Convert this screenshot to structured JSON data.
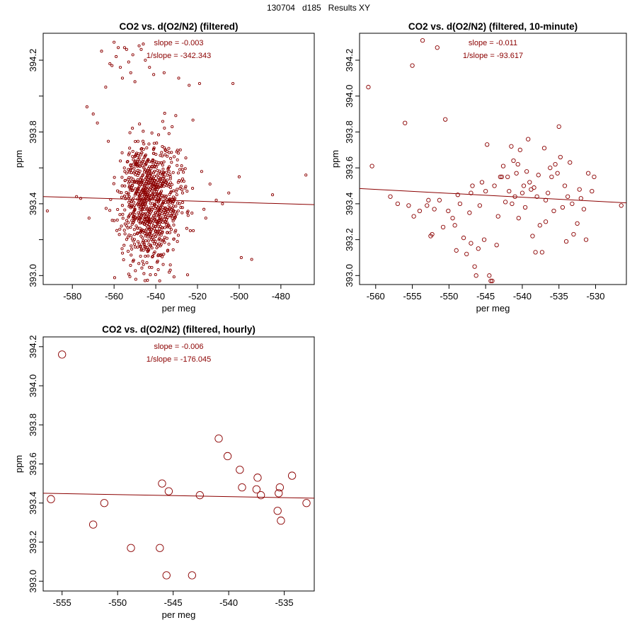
{
  "page": {
    "title": "130704   d185   Results XY"
  },
  "colors": {
    "points": "#8b0000",
    "line": "#8b0000",
    "axes": "#000000"
  },
  "chart_data": [
    {
      "type": "scatter",
      "title": "CO2 vs. d(O2/N2) (filtered)",
      "xlabel": "per meg",
      "ylabel": "ppm",
      "xlim": [
        -594,
        -464
      ],
      "ylim": [
        392.95,
        394.35
      ],
      "xticks": [
        -580,
        -560,
        -540,
        -520,
        -500,
        -480
      ],
      "yticks": [
        393.0,
        393.2,
        393.4,
        393.6,
        393.8,
        394.0,
        394.2
      ],
      "ytick_labels": [
        "393.0",
        "",
        "393.4",
        "",
        "393.8",
        "",
        "394.2"
      ],
      "annotations": [
        "slope = -0.003",
        "1/slope = -342.343"
      ],
      "marker": "small",
      "regression": {
        "x": [
          -594,
          -464
        ],
        "y": [
          393.44,
          393.395
        ]
      },
      "synthetic_cloud": {
        "n": 950,
        "cx": -542,
        "cy": 393.42,
        "sx": 7.5,
        "sy": 0.17,
        "seed": 7
      },
      "points": [
        [
          -592,
          393.36
        ],
        [
          -578,
          393.44
        ],
        [
          -576,
          393.43
        ],
        [
          -573,
          393.94
        ],
        [
          -572,
          393.32
        ],
        [
          -570,
          393.9
        ],
        [
          -568,
          393.85
        ],
        [
          -566,
          394.25
        ],
        [
          -564,
          394.05
        ],
        [
          -562,
          394.18
        ],
        [
          -561,
          394.17
        ],
        [
          -560,
          394.3
        ],
        [
          -559,
          394.22
        ],
        [
          -558,
          394.27
        ],
        [
          -557,
          394.16
        ],
        [
          -556,
          394.1
        ],
        [
          -555,
          394.27
        ],
        [
          -554,
          394.26
        ],
        [
          -553,
          394.19
        ],
        [
          -552,
          394.13
        ],
        [
          -551,
          394.23
        ],
        [
          -550,
          394.08
        ],
        [
          -548,
          394.28
        ],
        [
          -547,
          394.26
        ],
        [
          -546,
          394.29
        ],
        [
          -545,
          394.2
        ],
        [
          -543,
          394.16
        ],
        [
          -541,
          394.12
        ],
        [
          -536,
          394.13
        ],
        [
          -529,
          394.1
        ],
        [
          -524,
          394.06
        ],
        [
          -519,
          394.07
        ],
        [
          -514,
          393.51
        ],
        [
          -511,
          393.42
        ],
        [
          -508,
          393.4
        ],
        [
          -505,
          393.46
        ],
        [
          -503,
          394.07
        ],
        [
          -500,
          393.55
        ],
        [
          -499,
          393.1
        ],
        [
          -494,
          393.09
        ],
        [
          -484,
          393.45
        ],
        [
          -468,
          393.56
        ],
        [
          -533,
          393.55
        ],
        [
          -528,
          393.38
        ],
        [
          -525,
          393.47
        ],
        [
          -522,
          393.25
        ],
        [
          -518,
          393.58
        ],
        [
          -516,
          393.32
        ]
      ]
    },
    {
      "type": "scatter",
      "title": "CO2 vs. d(O2/N2) (filtered, 10-minute)",
      "xlabel": "per meg",
      "ylabel": "ppm",
      "xlim": [
        -562.2,
        -525.8
      ],
      "ylim": [
        392.95,
        394.35
      ],
      "xticks": [
        -560,
        -555,
        -550,
        -545,
        -540,
        -535,
        -530
      ],
      "yticks": [
        393.0,
        393.2,
        393.4,
        393.6,
        393.8,
        394.0,
        394.2
      ],
      "ytick_labels": [
        "393.0",
        "393.2",
        "393.4",
        "393.6",
        "393.8",
        "394.0",
        "394.2"
      ],
      "annotations": [
        "slope = -0.011",
        "1/slope = -93.617"
      ],
      "marker": "medium",
      "regression": {
        "x": [
          -562.2,
          -525.8
        ],
        "y": [
          393.485,
          393.405
        ]
      },
      "points": [
        [
          -561,
          394.05
        ],
        [
          -560.5,
          393.61
        ],
        [
          -558,
          393.44
        ],
        [
          -557,
          393.4
        ],
        [
          -556,
          393.85
        ],
        [
          -555.5,
          393.39
        ],
        [
          -555,
          394.17
        ],
        [
          -554.8,
          393.33
        ],
        [
          -554,
          393.36
        ],
        [
          -553.6,
          394.31
        ],
        [
          -553,
          393.39
        ],
        [
          -552.8,
          393.42
        ],
        [
          -552.5,
          393.22
        ],
        [
          -552.3,
          393.23
        ],
        [
          -552,
          393.37
        ],
        [
          -551.6,
          394.27
        ],
        [
          -551.3,
          393.42
        ],
        [
          -550.8,
          393.27
        ],
        [
          -550.5,
          393.87
        ],
        [
          -550.1,
          393.36
        ],
        [
          -549.5,
          393.32
        ],
        [
          -549.2,
          393.28
        ],
        [
          -549,
          393.14
        ],
        [
          -548.8,
          393.45
        ],
        [
          -548.5,
          393.4
        ],
        [
          -548,
          393.21
        ],
        [
          -547.6,
          393.12
        ],
        [
          -547.2,
          393.35
        ],
        [
          -547,
          393.18
        ],
        [
          -546.8,
          393.5
        ],
        [
          -546.5,
          393.05
        ],
        [
          -546.3,
          393.0
        ],
        [
          -546,
          393.15
        ],
        [
          -545.8,
          393.39
        ],
        [
          -545.5,
          393.52
        ],
        [
          -545.2,
          393.2
        ],
        [
          -545,
          393.47
        ],
        [
          -544.8,
          393.73
        ],
        [
          -544.5,
          393.0
        ],
        [
          -544.3,
          392.97
        ],
        [
          -544.1,
          392.97
        ],
        [
          -543.8,
          393.5
        ],
        [
          -543.5,
          393.17
        ],
        [
          -543.3,
          393.33
        ],
        [
          -543,
          393.55
        ],
        [
          -542.8,
          393.55
        ],
        [
          -542.6,
          393.61
        ],
        [
          -542.3,
          393.41
        ],
        [
          -542,
          393.55
        ],
        [
          -541.8,
          393.47
        ],
        [
          -541.5,
          393.72
        ],
        [
          -541.2,
          393.64
        ],
        [
          -541,
          393.44
        ],
        [
          -540.8,
          393.57
        ],
        [
          -540.5,
          393.32
        ],
        [
          -540.3,
          393.7
        ],
        [
          -540,
          393.46
        ],
        [
          -539.8,
          393.5
        ],
        [
          -539.6,
          393.38
        ],
        [
          -539.4,
          393.58
        ],
        [
          -539.2,
          393.76
        ],
        [
          -539,
          393.52
        ],
        [
          -538.8,
          393.48
        ],
        [
          -538.6,
          393.22
        ],
        [
          -538.4,
          393.49
        ],
        [
          -538.2,
          393.13
        ],
        [
          -538,
          393.44
        ],
        [
          -537.8,
          393.56
        ],
        [
          -537.6,
          393.28
        ],
        [
          -537.3,
          393.13
        ],
        [
          -537,
          393.71
        ],
        [
          -536.8,
          393.42
        ],
        [
          -536.5,
          393.46
        ],
        [
          -536.2,
          393.6
        ],
        [
          -536,
          393.55
        ],
        [
          -535.7,
          393.36
        ],
        [
          -535.5,
          393.62
        ],
        [
          -535.2,
          393.57
        ],
        [
          -535,
          393.83
        ],
        [
          -534.8,
          393.66
        ],
        [
          -534.5,
          393.38
        ],
        [
          -534.2,
          393.5
        ],
        [
          -534,
          393.19
        ],
        [
          -533.8,
          393.44
        ],
        [
          -533.5,
          393.63
        ],
        [
          -533.2,
          393.4
        ],
        [
          -533,
          393.23
        ],
        [
          -532.5,
          393.29
        ],
        [
          -532.2,
          393.48
        ],
        [
          -532,
          393.43
        ],
        [
          -531.6,
          393.37
        ],
        [
          -531.3,
          393.2
        ],
        [
          -531,
          393.57
        ],
        [
          -530.5,
          393.47
        ],
        [
          -530.2,
          393.55
        ],
        [
          -526.5,
          393.39
        ],
        [
          -547,
          393.46
        ],
        [
          -541.4,
          393.4
        ],
        [
          -536.8,
          393.3
        ],
        [
          -540.6,
          393.62
        ]
      ]
    },
    {
      "type": "scatter",
      "title": "CO2 vs. d(O2/N2) (filtered, hourly)",
      "xlabel": "per meg",
      "ylabel": "ppm",
      "xlim": [
        -556.7,
        -532.3
      ],
      "ylim": [
        392.95,
        394.25
      ],
      "xticks": [
        -555,
        -550,
        -545,
        -540,
        -535
      ],
      "yticks": [
        393.0,
        393.2,
        393.4,
        393.6,
        393.8,
        394.0,
        394.2
      ],
      "ytick_labels": [
        "393.0",
        "393.2",
        "393.4",
        "393.6",
        "393.8",
        "394.0",
        "394.2"
      ],
      "annotations": [
        "slope = -0.006",
        "1/slope = -176.045"
      ],
      "marker": "large",
      "regression": {
        "x": [
          -556.7,
          -532.3
        ],
        "y": [
          393.45,
          393.425
        ]
      },
      "points": [
        [
          -556,
          393.42
        ],
        [
          -555,
          394.16
        ],
        [
          -552.2,
          393.29
        ],
        [
          -551.2,
          393.4
        ],
        [
          -548.8,
          393.17
        ],
        [
          -546.2,
          393.17
        ],
        [
          -546,
          393.5
        ],
        [
          -545.6,
          393.03
        ],
        [
          -545.4,
          393.46
        ],
        [
          -543.3,
          393.03
        ],
        [
          -542.6,
          393.44
        ],
        [
          -540.9,
          393.73
        ],
        [
          -540.1,
          393.64
        ],
        [
          -539,
          393.57
        ],
        [
          -538.8,
          393.48
        ],
        [
          -537.5,
          393.47
        ],
        [
          -537.4,
          393.53
        ],
        [
          -537.1,
          393.44
        ],
        [
          -535.6,
          393.36
        ],
        [
          -535.5,
          393.45
        ],
        [
          -535.4,
          393.48
        ],
        [
          -535.3,
          393.31
        ],
        [
          -534.3,
          393.54
        ],
        [
          -533,
          393.4
        ]
      ]
    }
  ]
}
